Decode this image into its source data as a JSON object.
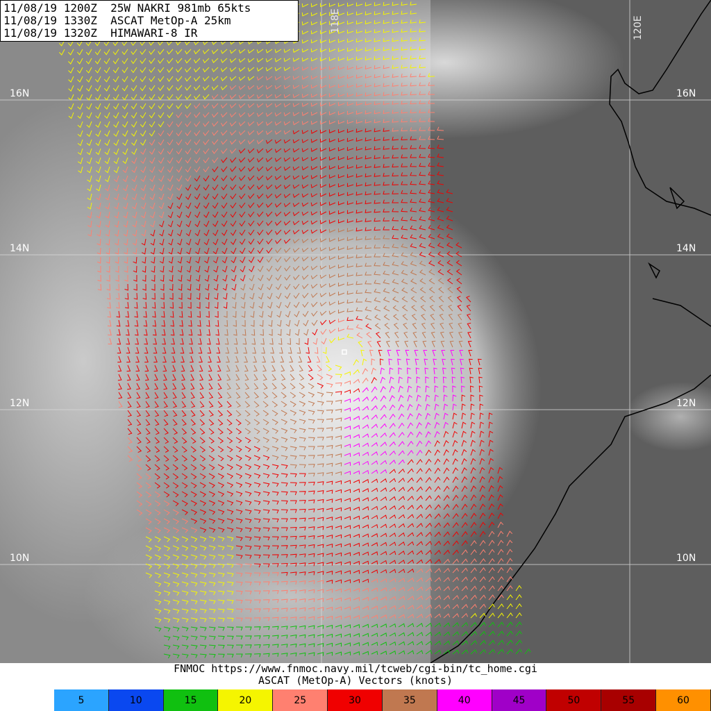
{
  "header": {
    "lines": [
      "11/08/19 1200Z  25W NAKRI 981mb 65kts",
      "11/08/19 1330Z  ASCAT MetOp-A 25km",
      "11/08/19 1320Z  HIMAWARI-8 IR"
    ]
  },
  "grid": {
    "lat_labels": [
      "16N",
      "14N",
      "12N",
      "10N"
    ],
    "lon_labels": [
      "118E",
      "120E"
    ]
  },
  "footer": {
    "url_line": "FNMOC https://www.fnmoc.navy.mil/tcweb/cgi-bin/tc_home.cgi",
    "product_line": "ASCAT (MetOp-A) Vectors (knots)"
  },
  "legend": {
    "entries": [
      {
        "label": "5",
        "color": "#2ba4ff"
      },
      {
        "label": "10",
        "color": "#0a48f0"
      },
      {
        "label": "15",
        "color": "#10c010"
      },
      {
        "label": "20",
        "color": "#f5f500"
      },
      {
        "label": "25",
        "color": "#ff8070"
      },
      {
        "label": "30",
        "color": "#f00000"
      },
      {
        "label": "35",
        "color": "#c07850"
      },
      {
        "label": "40",
        "color": "#ff00ff"
      },
      {
        "label": "45",
        "color": "#a000c8"
      },
      {
        "label": "50",
        "color": "#c00000"
      },
      {
        "label": "55",
        "color": "#a80000"
      },
      {
        "label": "60",
        "color": "#ff9000"
      }
    ]
  },
  "storm": {
    "name": "NAKRI",
    "center_marker": "storm-center-icon"
  }
}
